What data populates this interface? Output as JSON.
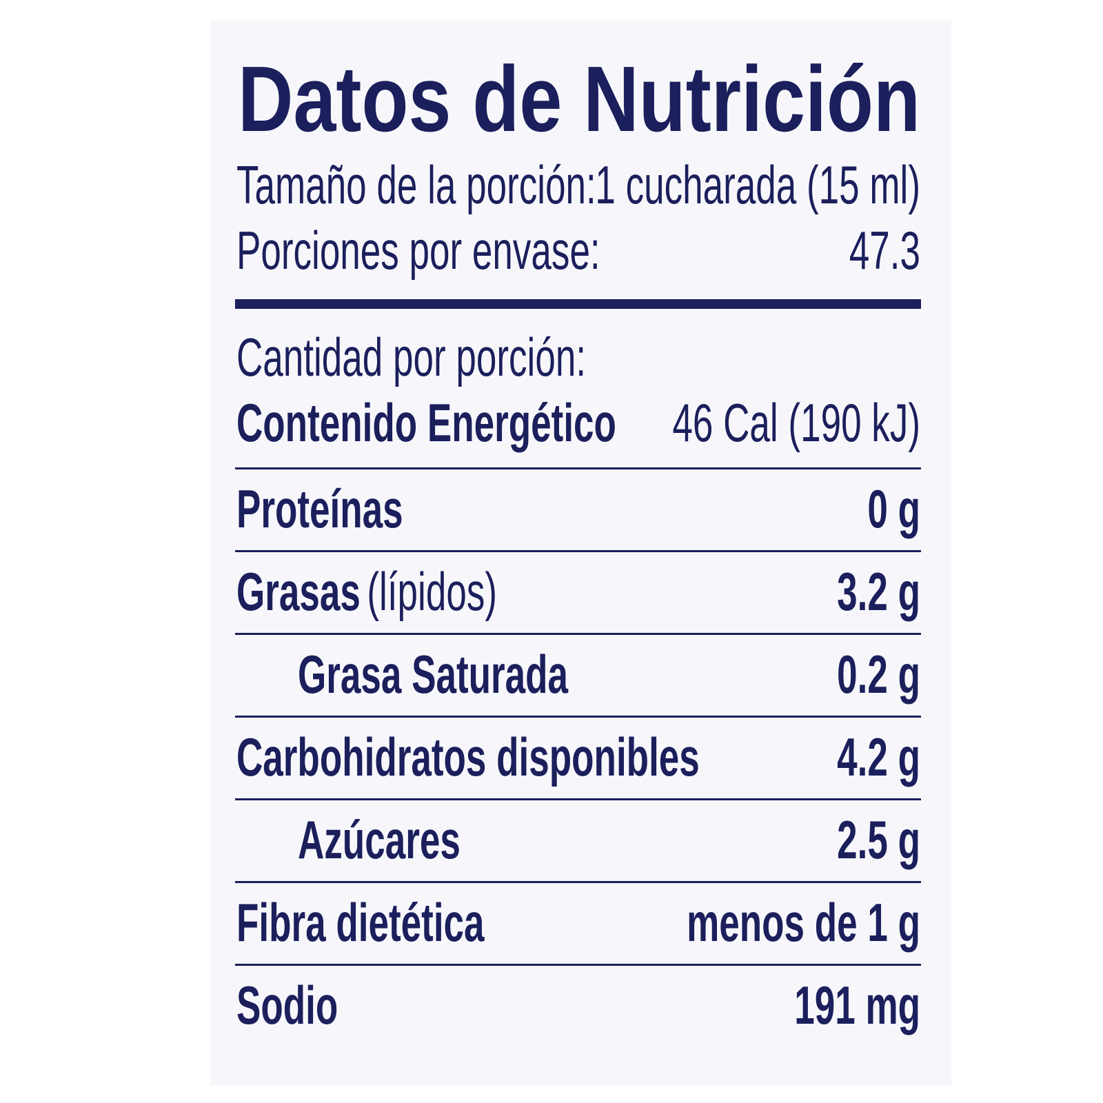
{
  "title": "Datos de Nutrición",
  "serving_size": {
    "label": "Tamaño de la porción:",
    "value": "1 cucharada (15 ml)"
  },
  "servings_per_container": {
    "label": "Porciones por envase:",
    "value": "47.3"
  },
  "amount_per_serving": "Cantidad por porción:",
  "energy": {
    "label": "Contenido Energético",
    "value": "46 Cal (190 kJ)"
  },
  "rows": [
    {
      "label": "Proteínas",
      "value": "0 g"
    },
    {
      "label": "Grasas",
      "note": "(lípidos)",
      "value": "3.2 g"
    },
    {
      "label": "Grasa Saturada",
      "value": "0.2 g",
      "indent": true
    },
    {
      "label": "Carbohidratos disponibles",
      "value": "4.2 g"
    },
    {
      "label": "Azúcares",
      "value": "2.5 g",
      "indent": true
    },
    {
      "label": "Fibra dietética",
      "value": "menos de 1 g"
    },
    {
      "label": "Sodio",
      "value": "191 mg"
    }
  ]
}
